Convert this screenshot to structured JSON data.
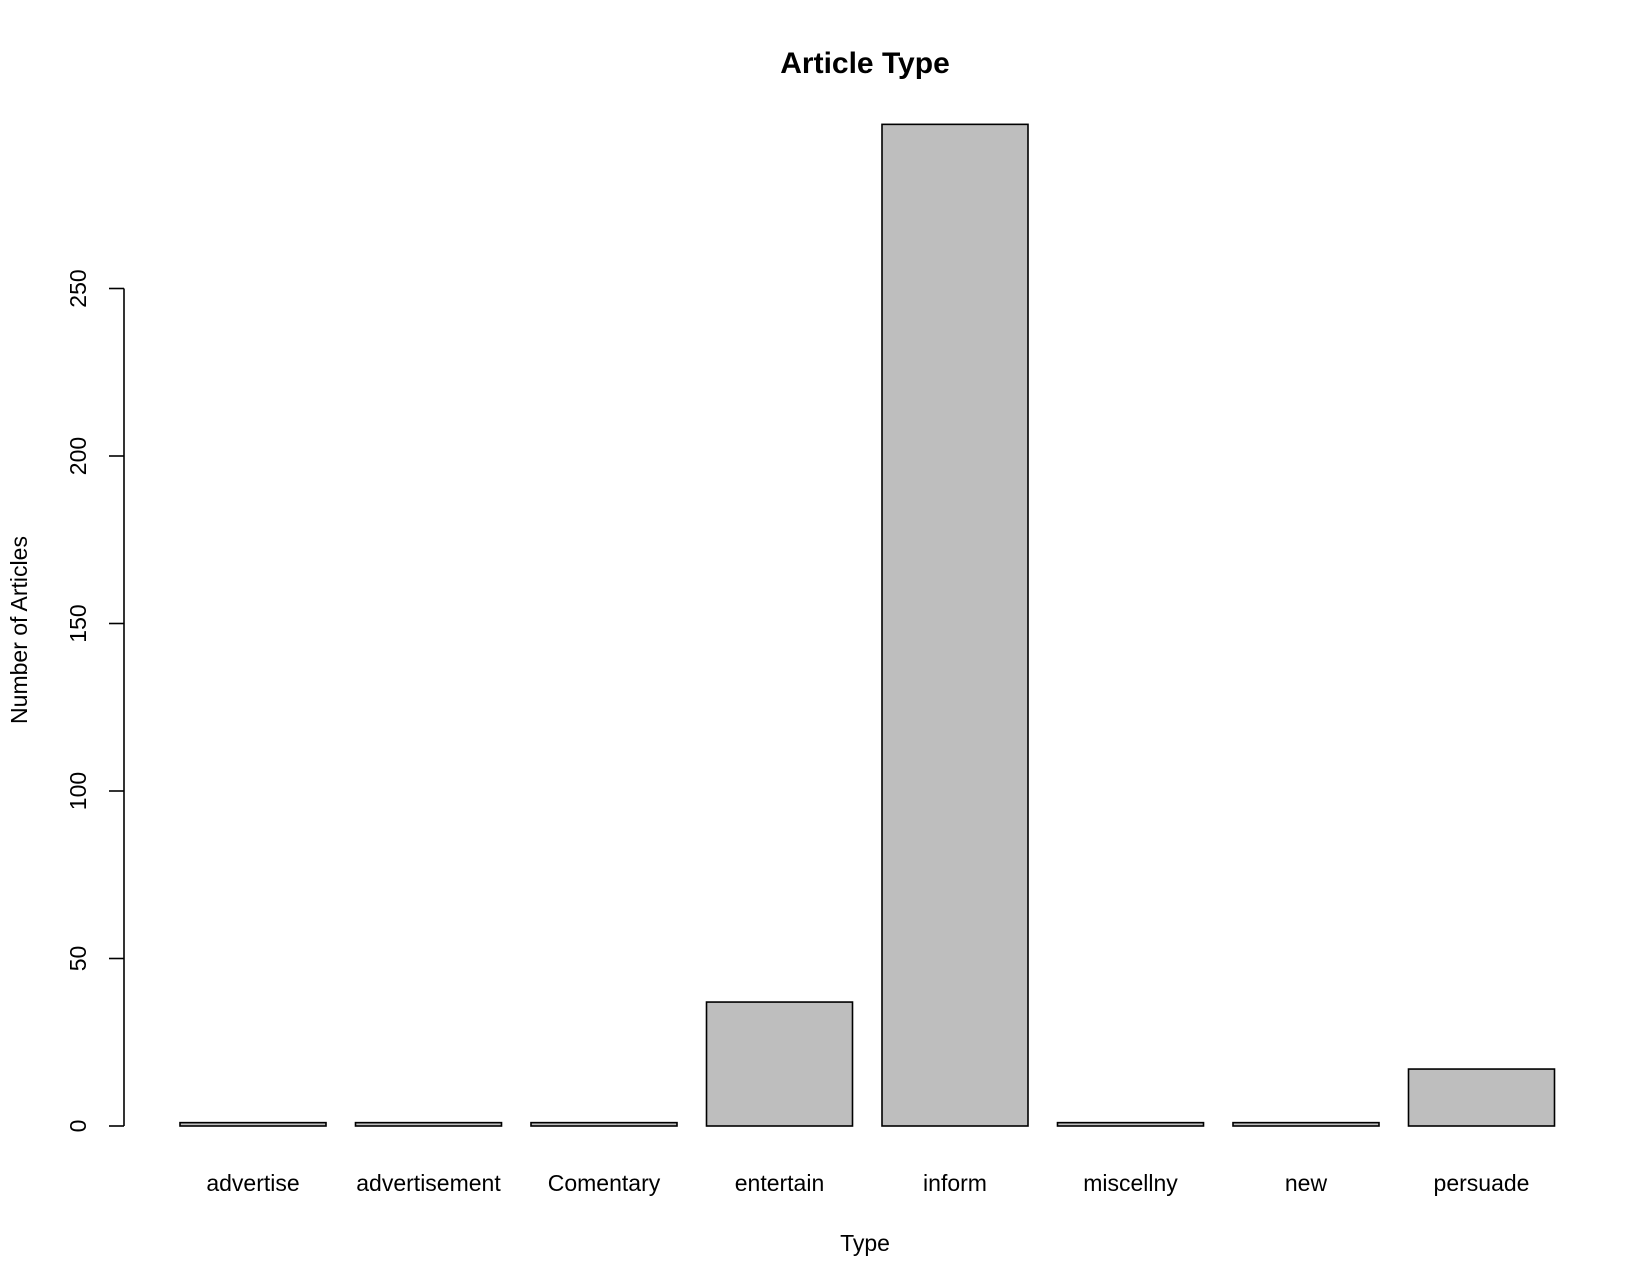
{
  "chart_data": {
    "type": "bar",
    "title": "Article Type",
    "xlabel": "Type",
    "ylabel": "Number of Articles",
    "categories": [
      "advertise",
      "advertisement",
      "Comentary",
      "entertain",
      "inform",
      "miscellny",
      "new",
      "persuade"
    ],
    "values": [
      1,
      1,
      1,
      37,
      299,
      1,
      1,
      17
    ],
    "ylim": [
      0,
      300
    ],
    "yticks": [
      0,
      50,
      100,
      150,
      200,
      250
    ],
    "grid": false,
    "legend": "none",
    "bar_color": "#bebebe",
    "border_color": "#000000"
  }
}
